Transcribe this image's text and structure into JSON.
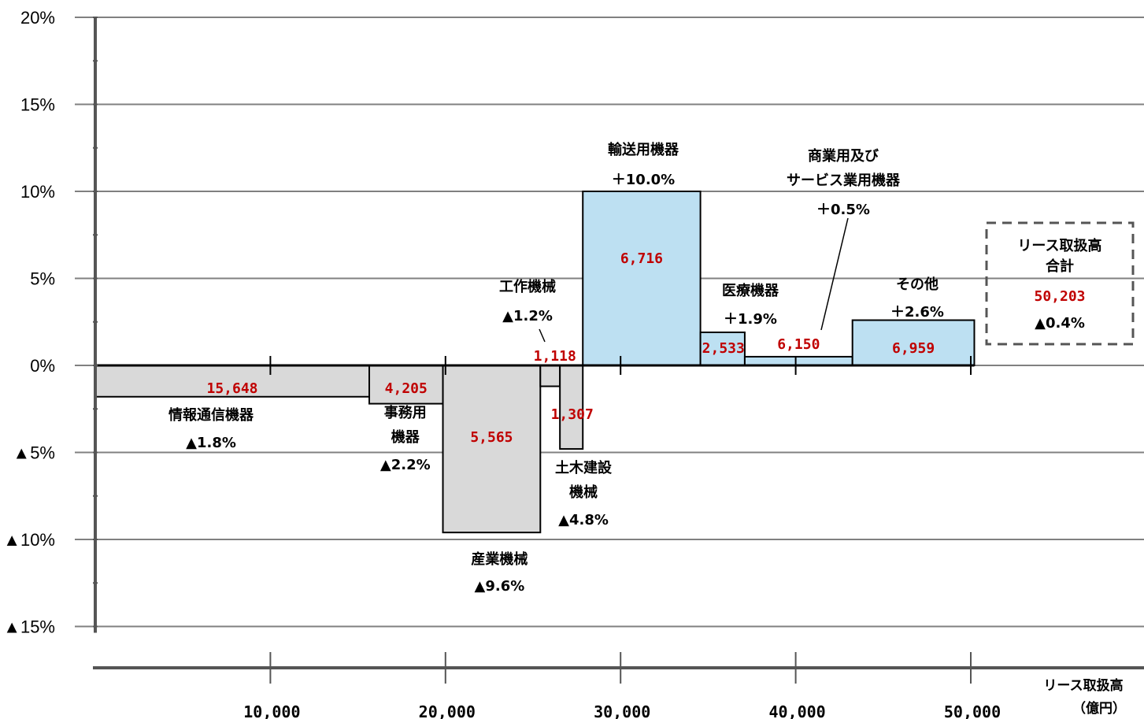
{
  "chart_data": {
    "type": "bar",
    "subtype": "variable-width",
    "xlabel": "リース取扱高",
    "xunit": "（億円）",
    "ylim": [
      -15,
      20
    ],
    "yticks": [
      {
        "value": 20,
        "label": "20%"
      },
      {
        "value": 15,
        "label": "15%"
      },
      {
        "value": 10,
        "label": "10%"
      },
      {
        "value": 5,
        "label": "5%"
      },
      {
        "value": 0,
        "label": "0%"
      },
      {
        "value": -5,
        "label": "▲5%"
      },
      {
        "value": -10,
        "label": "▲10%"
      },
      {
        "value": -15,
        "label": "▲15%"
      }
    ],
    "xticks": [
      {
        "value": 10000,
        "label": "10,000"
      },
      {
        "value": 20000,
        "label": "20,000"
      },
      {
        "value": 30000,
        "label": "30,000"
      },
      {
        "value": 40000,
        "label": "40,000"
      },
      {
        "value": 50000,
        "label": "50,000"
      }
    ],
    "grid": true,
    "colors": {
      "negative": "#d9d9d9",
      "positive": "#bde0f2",
      "value_text": "#c00000",
      "outline": "#000000"
    },
    "bars": [
      {
        "name_lines": [
          "情報通信機器"
        ],
        "amount": 15648,
        "amount_label": "15,648",
        "change": -1.8,
        "change_label": "▲1.8%"
      },
      {
        "name_lines": [
          "事務用",
          "機器"
        ],
        "amount": 4205,
        "amount_label": "4,205",
        "change": -2.2,
        "change_label": "▲2.2%"
      },
      {
        "name_lines": [
          "産業機械"
        ],
        "amount": 5565,
        "amount_label": "5,565",
        "change": -9.6,
        "change_label": "▲9.6%"
      },
      {
        "name_lines": [
          "工作機械"
        ],
        "amount": 1118,
        "amount_label": "1,118",
        "change": -1.2,
        "change_label": "▲1.2%"
      },
      {
        "name_lines": [
          "土木建設",
          "機械"
        ],
        "amount": 1307,
        "amount_label": "1,307",
        "change": -4.8,
        "change_label": "▲4.8%"
      },
      {
        "name_lines": [
          "輸送用機器"
        ],
        "amount": 6716,
        "amount_label": "6,716",
        "change": 10.0,
        "change_label": "＋10.0%"
      },
      {
        "name_lines": [
          "医療機器"
        ],
        "amount": 2533,
        "amount_label": "2,533",
        "change": 1.9,
        "change_label": "＋1.9%"
      },
      {
        "name_lines": [
          "商業用及び",
          "サービス業用機器"
        ],
        "amount": 6150,
        "amount_label": "6,150",
        "change": 0.5,
        "change_label": "＋0.5%"
      },
      {
        "name_lines": [
          "その他"
        ],
        "amount": 6959,
        "amount_label": "6,959",
        "change": 2.6,
        "change_label": "＋2.6%"
      }
    ],
    "total": {
      "name_lines": [
        "リース取扱高",
        "合計"
      ],
      "amount": 50203,
      "amount_label": "50,203",
      "change": -0.4,
      "change_label": "▲0.4%"
    }
  }
}
